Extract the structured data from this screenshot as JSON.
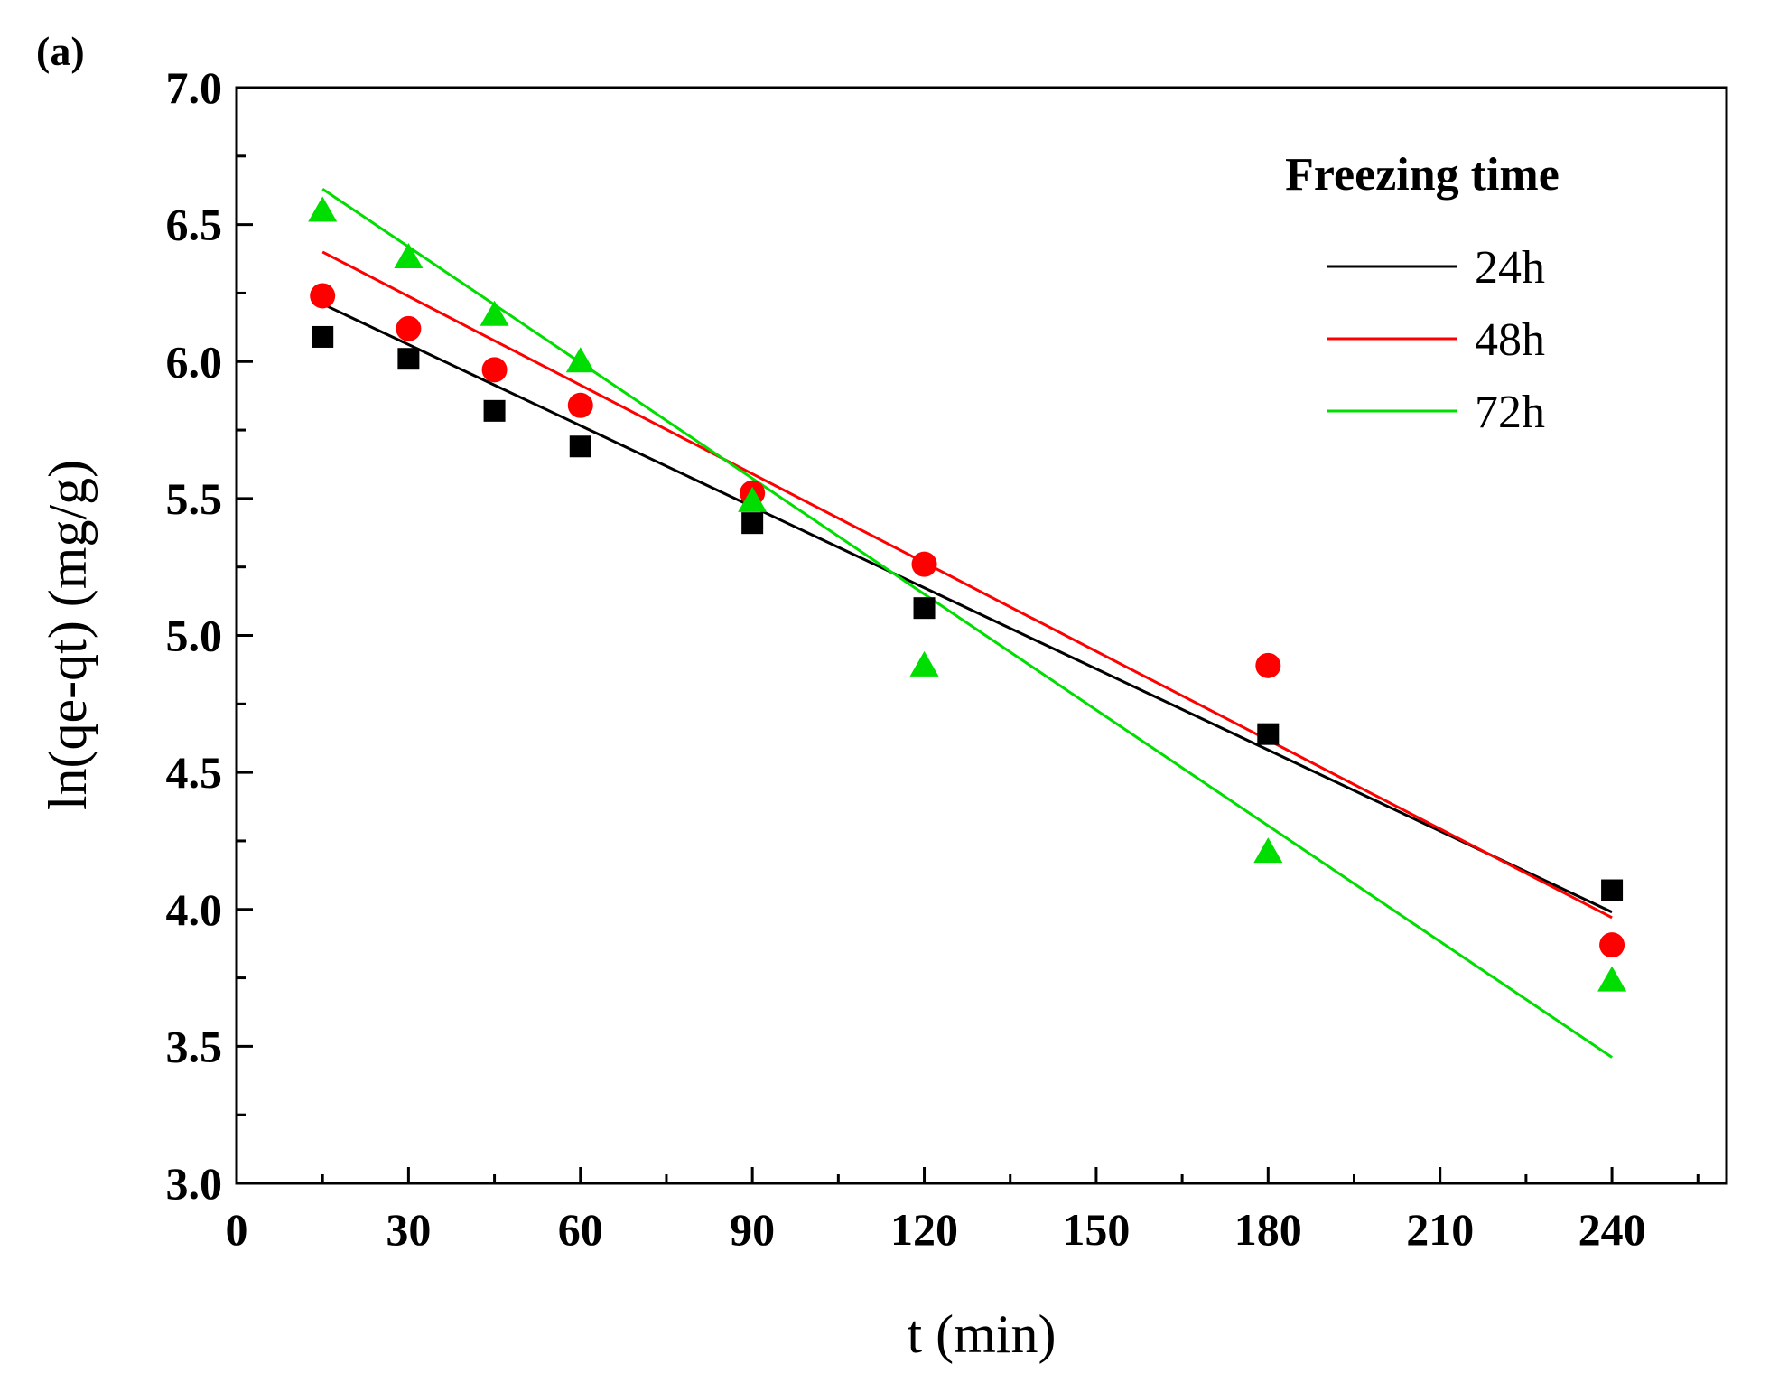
{
  "chart_data": {
    "type": "scatter",
    "panel_label": "(a)",
    "xlabel": "t (min)",
    "ylabel": "ln(qe-qt) (mg/g)",
    "xlim": [
      0,
      260
    ],
    "ylim": [
      3.0,
      7.0
    ],
    "x_ticks": [
      0,
      30,
      60,
      90,
      120,
      150,
      180,
      210,
      240
    ],
    "x_tick_labels": [
      "0",
      "30",
      "60",
      "90",
      "120",
      "150",
      "180",
      "210",
      "240"
    ],
    "y_ticks": [
      3.0,
      3.5,
      4.0,
      4.5,
      5.0,
      5.5,
      6.0,
      6.5,
      7.0
    ],
    "y_tick_labels": [
      "3.0",
      "3.5",
      "4.0",
      "4.5",
      "5.0",
      "5.5",
      "6.0",
      "6.5",
      "7.0"
    ],
    "x": [
      15,
      30,
      45,
      60,
      90,
      120,
      180,
      240
    ],
    "legend_title": "Freezing time",
    "legend_position": "top-right",
    "series": [
      {
        "name": "24h",
        "color": "#000000",
        "marker": "square",
        "values": [
          6.09,
          6.01,
          5.82,
          5.69,
          5.41,
          5.1,
          4.64,
          4.07
        ],
        "fit": {
          "x": [
            15,
            240
          ],
          "y": [
            6.21,
            3.99
          ]
        }
      },
      {
        "name": "48h",
        "color": "#ff0000",
        "marker": "circle",
        "values": [
          6.24,
          6.12,
          5.97,
          5.84,
          5.52,
          5.26,
          4.89,
          3.87
        ],
        "fit": {
          "x": [
            15,
            240
          ],
          "y": [
            6.4,
            3.97
          ]
        }
      },
      {
        "name": "72h",
        "color": "#00dd00",
        "marker": "triangle",
        "values": [
          6.55,
          6.38,
          6.17,
          6.0,
          5.49,
          4.89,
          4.21,
          3.74
        ],
        "fit": {
          "x": [
            15,
            240
          ],
          "y": [
            6.63,
            3.46
          ]
        }
      }
    ]
  }
}
